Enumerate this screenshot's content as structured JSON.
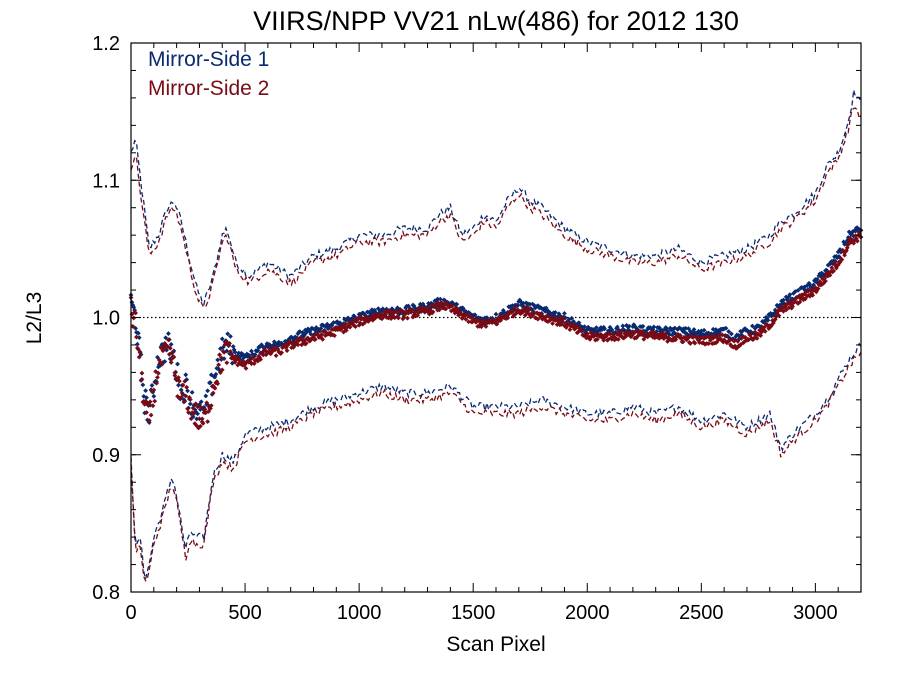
{
  "chart_data": {
    "type": "scatter",
    "title": "VIIRS/NPP VV21 nLw(486) for 2012 130",
    "xlabel": "Scan Pixel",
    "ylabel": "L2/L3",
    "xlim": [
      0,
      3200
    ],
    "ylim": [
      0.8,
      1.2
    ],
    "x_ticks": [
      0,
      500,
      1000,
      1500,
      2000,
      2500,
      3000
    ],
    "y_ticks": [
      0.8,
      0.9,
      1.0,
      1.1,
      1.2
    ],
    "y_tick_labels": [
      "0.8",
      "0.9",
      "1.0",
      "1.1",
      "1.2"
    ],
    "legend_position": "top-left",
    "reference_line": {
      "y": 1.0,
      "style": "dotted"
    },
    "colors": {
      "ms1": "#0a2a6e",
      "ms2": "#7a0a14"
    },
    "series": [
      {
        "name": "Mirror-Side 1",
        "color": "#0a2a6e",
        "mean": {
          "x": [
            0,
            20,
            40,
            60,
            80,
            100,
            120,
            140,
            160,
            180,
            200,
            220,
            240,
            260,
            280,
            300,
            320,
            340,
            360,
            380,
            400,
            420,
            450,
            500,
            550,
            600,
            650,
            700,
            800,
            900,
            1000,
            1100,
            1200,
            1300,
            1370,
            1450,
            1500,
            1550,
            1600,
            1700,
            1800,
            1900,
            2000,
            2100,
            2200,
            2300,
            2400,
            2500,
            2600,
            2650,
            2700,
            2750,
            2800,
            2850,
            2900,
            2950,
            3000,
            3050,
            3100,
            3150,
            3200
          ],
          "y": [
            1.01,
            1.0,
            0.97,
            0.94,
            0.93,
            0.95,
            0.97,
            0.975,
            0.98,
            0.975,
            0.96,
            0.945,
            0.95,
            0.94,
            0.935,
            0.93,
            0.93,
            0.94,
            0.955,
            0.965,
            0.975,
            0.98,
            0.975,
            0.97,
            0.975,
            0.98,
            0.98,
            0.985,
            0.99,
            0.995,
            1.0,
            1.005,
            1.005,
            1.008,
            1.012,
            1.005,
            1.0,
            0.998,
            1.0,
            1.01,
            1.005,
            1.0,
            0.99,
            0.99,
            0.992,
            0.99,
            0.99,
            0.988,
            0.99,
            0.985,
            0.99,
            0.992,
            1.0,
            1.01,
            1.015,
            1.02,
            1.025,
            1.035,
            1.045,
            1.06,
            1.065
          ]
        },
        "upper": {
          "x": [
            0,
            20,
            50,
            80,
            120,
            160,
            190,
            220,
            260,
            290,
            320,
            360,
            400,
            420,
            460,
            520,
            600,
            700,
            800,
            900,
            1000,
            1100,
            1200,
            1300,
            1350,
            1400,
            1450,
            1500,
            1550,
            1600,
            1650,
            1700,
            1750,
            1800,
            1900,
            2000,
            2100,
            2200,
            2300,
            2400,
            2500,
            2600,
            2700,
            2800,
            2850,
            2900,
            3000,
            3050,
            3100,
            3140,
            3170,
            3200
          ],
          "y": [
            1.12,
            1.13,
            1.09,
            1.05,
            1.06,
            1.08,
            1.085,
            1.07,
            1.04,
            1.02,
            1.01,
            1.03,
            1.06,
            1.065,
            1.04,
            1.03,
            1.04,
            1.03,
            1.045,
            1.05,
            1.06,
            1.06,
            1.065,
            1.065,
            1.075,
            1.08,
            1.06,
            1.065,
            1.075,
            1.07,
            1.085,
            1.095,
            1.085,
            1.08,
            1.065,
            1.055,
            1.05,
            1.045,
            1.045,
            1.05,
            1.04,
            1.045,
            1.05,
            1.06,
            1.07,
            1.075,
            1.09,
            1.11,
            1.12,
            1.14,
            1.165,
            1.155
          ]
        },
        "lower": {
          "x": [
            0,
            20,
            40,
            60,
            80,
            100,
            140,
            180,
            200,
            240,
            260,
            280,
            320,
            360,
            400,
            450,
            500,
            600,
            700,
            800,
            900,
            1000,
            1100,
            1200,
            1300,
            1400,
            1500,
            1600,
            1700,
            1800,
            1900,
            2000,
            2100,
            2200,
            2300,
            2400,
            2500,
            2600,
            2700,
            2800,
            2850,
            2900,
            3000,
            3050,
            3100,
            3150,
            3200
          ],
          "y": [
            0.9,
            0.83,
            0.84,
            0.81,
            0.82,
            0.84,
            0.86,
            0.885,
            0.87,
            0.83,
            0.845,
            0.84,
            0.84,
            0.885,
            0.9,
            0.895,
            0.915,
            0.92,
            0.925,
            0.935,
            0.94,
            0.945,
            0.95,
            0.945,
            0.945,
            0.95,
            0.935,
            0.935,
            0.935,
            0.94,
            0.935,
            0.93,
            0.93,
            0.935,
            0.93,
            0.935,
            0.925,
            0.93,
            0.92,
            0.93,
            0.905,
            0.915,
            0.93,
            0.94,
            0.955,
            0.97,
            0.98
          ]
        }
      },
      {
        "name": "Mirror-Side 2",
        "color": "#7a0a14",
        "mean": {
          "x": [
            0,
            20,
            40,
            60,
            80,
            100,
            120,
            140,
            160,
            180,
            200,
            220,
            240,
            260,
            280,
            300,
            320,
            340,
            360,
            380,
            400,
            420,
            450,
            500,
            550,
            600,
            650,
            700,
            800,
            900,
            1000,
            1100,
            1200,
            1300,
            1370,
            1450,
            1500,
            1550,
            1600,
            1700,
            1800,
            1900,
            2000,
            2100,
            2200,
            2300,
            2400,
            2500,
            2600,
            2650,
            2700,
            2750,
            2800,
            2850,
            2900,
            2950,
            3000,
            3050,
            3100,
            3150,
            3200
          ],
          "y": [
            1.005,
            0.995,
            0.965,
            0.935,
            0.925,
            0.945,
            0.965,
            0.97,
            0.975,
            0.97,
            0.955,
            0.94,
            0.945,
            0.935,
            0.93,
            0.925,
            0.925,
            0.935,
            0.95,
            0.96,
            0.97,
            0.975,
            0.97,
            0.965,
            0.97,
            0.975,
            0.975,
            0.98,
            0.985,
            0.99,
            0.997,
            1.002,
            1.002,
            1.005,
            1.009,
            1.002,
            0.997,
            0.995,
            0.997,
            1.006,
            1.001,
            0.996,
            0.986,
            0.986,
            0.988,
            0.986,
            0.985,
            0.983,
            0.985,
            0.98,
            0.985,
            0.987,
            0.995,
            1.005,
            1.01,
            1.015,
            1.02,
            1.03,
            1.04,
            1.055,
            1.06
          ]
        },
        "upper": {
          "x": [
            0,
            20,
            50,
            80,
            120,
            160,
            190,
            220,
            260,
            290,
            320,
            360,
            400,
            420,
            460,
            520,
            600,
            700,
            800,
            900,
            1000,
            1100,
            1200,
            1300,
            1350,
            1400,
            1450,
            1500,
            1550,
            1600,
            1650,
            1700,
            1750,
            1800,
            1900,
            2000,
            2100,
            2200,
            2300,
            2400,
            2500,
            2600,
            2700,
            2800,
            2850,
            2900,
            3000,
            3050,
            3100,
            3140,
            3170,
            3200
          ],
          "y": [
            1.11,
            1.12,
            1.08,
            1.045,
            1.055,
            1.075,
            1.08,
            1.065,
            1.035,
            1.015,
            1.005,
            1.025,
            1.055,
            1.06,
            1.035,
            1.025,
            1.035,
            1.025,
            1.04,
            1.045,
            1.055,
            1.055,
            1.06,
            1.06,
            1.07,
            1.075,
            1.055,
            1.06,
            1.07,
            1.065,
            1.08,
            1.09,
            1.08,
            1.075,
            1.06,
            1.05,
            1.045,
            1.04,
            1.04,
            1.045,
            1.035,
            1.04,
            1.045,
            1.055,
            1.065,
            1.07,
            1.085,
            1.105,
            1.115,
            1.135,
            1.155,
            1.145
          ]
        },
        "lower": {
          "x": [
            0,
            20,
            40,
            60,
            80,
            100,
            140,
            180,
            200,
            240,
            260,
            280,
            320,
            360,
            400,
            450,
            500,
            600,
            700,
            800,
            900,
            1000,
            1100,
            1200,
            1300,
            1400,
            1500,
            1600,
            1700,
            1800,
            1900,
            2000,
            2100,
            2200,
            2300,
            2400,
            2500,
            2600,
            2700,
            2800,
            2850,
            2900,
            3000,
            3050,
            3100,
            3150,
            3200
          ],
          "y": [
            0.895,
            0.825,
            0.835,
            0.805,
            0.815,
            0.835,
            0.855,
            0.88,
            0.865,
            0.825,
            0.84,
            0.835,
            0.835,
            0.88,
            0.895,
            0.89,
            0.91,
            0.915,
            0.92,
            0.93,
            0.935,
            0.94,
            0.945,
            0.94,
            0.94,
            0.945,
            0.93,
            0.93,
            0.93,
            0.935,
            0.93,
            0.925,
            0.925,
            0.93,
            0.925,
            0.93,
            0.92,
            0.925,
            0.915,
            0.925,
            0.9,
            0.91,
            0.925,
            0.935,
            0.95,
            0.965,
            0.975
          ]
        }
      }
    ]
  }
}
